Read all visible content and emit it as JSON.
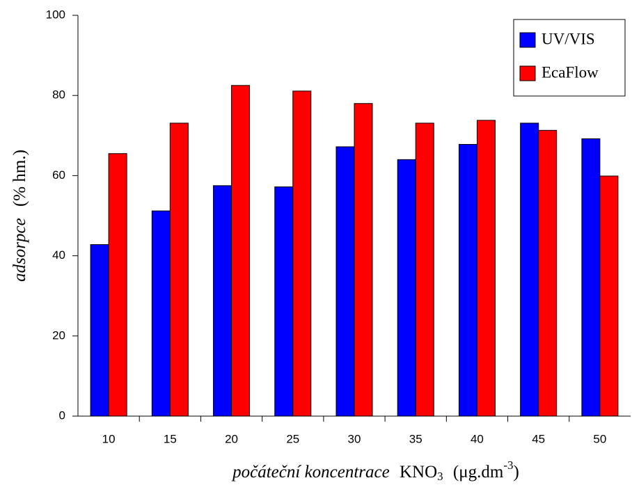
{
  "chart_data": {
    "type": "bar",
    "xlabel": [
      "počáteční koncentrace",
      "KNO",
      "3",
      "(μg.dm",
      "-3",
      ")"
    ],
    "ylabel": [
      "adsorpce",
      "(% hm.)"
    ],
    "categories": [
      "10",
      "15",
      "20",
      "25",
      "30",
      "35",
      "40",
      "45",
      "50"
    ],
    "series": [
      {
        "name": "UV/VIS",
        "color": "#0000ff",
        "values": [
          42.8,
          51.2,
          57.5,
          57.2,
          67.2,
          64.0,
          67.8,
          73.1,
          69.2
        ]
      },
      {
        "name": "EcaFlow",
        "color": "#ff0000",
        "values": [
          65.5,
          73.1,
          82.5,
          81.1,
          78.0,
          73.1,
          73.8,
          71.3,
          59.9
        ]
      }
    ],
    "ylim": [
      0,
      100
    ],
    "yticks": [
      0,
      20,
      40,
      60,
      80,
      100
    ],
    "grid": false,
    "legend": "upper right"
  }
}
